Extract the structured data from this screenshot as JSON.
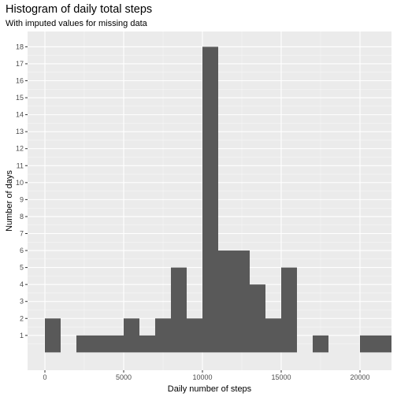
{
  "chart_data": {
    "type": "bar",
    "title": "Histogram of daily total steps",
    "subtitle": "With imputed values for missing data",
    "xlabel": "Daily number of steps",
    "ylabel": "Number of days",
    "xlim": [
      -1100,
      22000
    ],
    "ylim": [
      -1.05,
      18.9
    ],
    "xticks": [
      0,
      5000,
      10000,
      15000,
      20000
    ],
    "yticks": [
      1,
      2,
      3,
      4,
      5,
      6,
      7,
      8,
      9,
      10,
      11,
      12,
      13,
      14,
      15,
      16,
      17,
      18
    ],
    "bins": [
      {
        "x0": 0,
        "x1": 1000,
        "count": 2
      },
      {
        "x0": 1000,
        "x1": 2000,
        "count": 0
      },
      {
        "x0": 2000,
        "x1": 3000,
        "count": 1
      },
      {
        "x0": 3000,
        "x1": 4000,
        "count": 1
      },
      {
        "x0": 4000,
        "x1": 5000,
        "count": 1
      },
      {
        "x0": 5000,
        "x1": 6000,
        "count": 2
      },
      {
        "x0": 6000,
        "x1": 7000,
        "count": 1
      },
      {
        "x0": 7000,
        "x1": 8000,
        "count": 2
      },
      {
        "x0": 8000,
        "x1": 9000,
        "count": 5
      },
      {
        "x0": 9000,
        "x1": 10000,
        "count": 2
      },
      {
        "x0": 10000,
        "x1": 11000,
        "count": 18
      },
      {
        "x0": 11000,
        "x1": 12000,
        "count": 6
      },
      {
        "x0": 12000,
        "x1": 13000,
        "count": 6
      },
      {
        "x0": 13000,
        "x1": 14000,
        "count": 4
      },
      {
        "x0": 14000,
        "x1": 15000,
        "count": 2
      },
      {
        "x0": 15000,
        "x1": 16000,
        "count": 5
      },
      {
        "x0": 16000,
        "x1": 17000,
        "count": 0
      },
      {
        "x0": 17000,
        "x1": 18000,
        "count": 1
      },
      {
        "x0": 18000,
        "x1": 19000,
        "count": 0
      },
      {
        "x0": 19000,
        "x1": 20000,
        "count": 0
      },
      {
        "x0": 20000,
        "x1": 21000,
        "count": 1
      },
      {
        "x0": 21000,
        "x1": 22000,
        "count": 1
      }
    ],
    "bar_color": "#595959",
    "panel_color": "#ebebeb",
    "grid": true,
    "legend": "none"
  }
}
